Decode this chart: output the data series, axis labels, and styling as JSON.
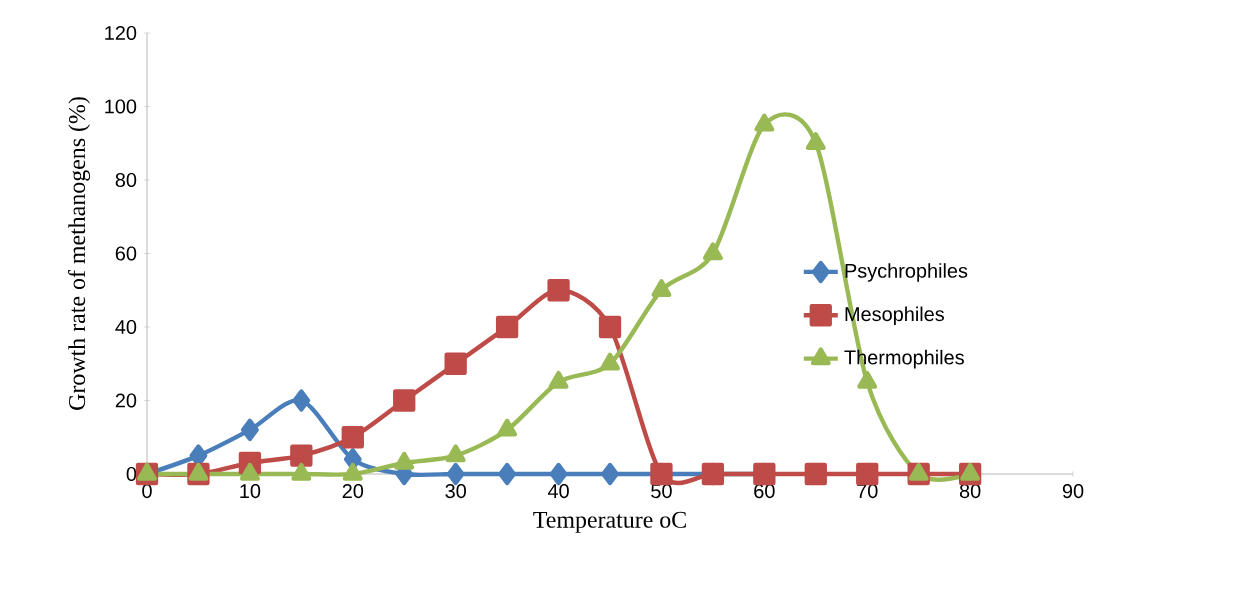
{
  "chart_data": {
    "type": "line",
    "xlabel": "Temperature oC",
    "ylabel": "Growth rate of methanogens (%)",
    "x": [
      0,
      5,
      10,
      15,
      20,
      25,
      30,
      35,
      40,
      45,
      50,
      55,
      60,
      65,
      70,
      75,
      80
    ],
    "series": [
      {
        "name": "Psychrophiles",
        "color": "#4a7ebb",
        "marker": "diamond",
        "values": [
          0,
          5,
          12,
          20,
          4,
          0,
          0,
          0,
          0,
          0,
          0,
          0,
          0,
          null,
          null,
          null,
          null
        ]
      },
      {
        "name": "Mesophiles",
        "color": "#be4b48",
        "marker": "square",
        "values": [
          0,
          0,
          3,
          5,
          10,
          20,
          30,
          40,
          50,
          40,
          0,
          0,
          0,
          0,
          0,
          0,
          0
        ]
      },
      {
        "name": "Thermophiles",
        "color": "#98b954",
        "marker": "triangle",
        "values": [
          0,
          0,
          0,
          0,
          0,
          3,
          5,
          12,
          25,
          30,
          50,
          60,
          95,
          90,
          25,
          0,
          0
        ]
      }
    ],
    "xlim": [
      0,
      90
    ],
    "xticks": [
      0,
      10,
      20,
      30,
      40,
      50,
      60,
      70,
      80,
      90
    ],
    "ylim": [
      0,
      120
    ],
    "yticks": [
      0,
      20,
      40,
      60,
      80,
      100,
      120
    ],
    "grid": false,
    "legend": "right"
  }
}
